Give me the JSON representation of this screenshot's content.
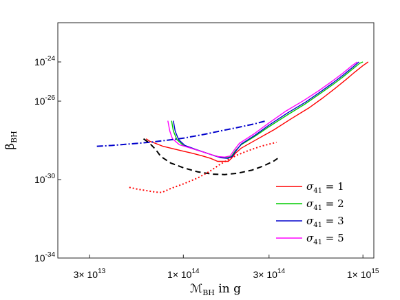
{
  "chart_data": {
    "type": "line",
    "xlabel_main": "ℳ",
    "xlabel_sub": "BH",
    "xlabel_rest": " in g",
    "ylabel_main": "β",
    "ylabel_sub": "BH",
    "xscale": "log",
    "yscale": "log",
    "xlim": [
      20000000000000.0,
      1150000000000000.0
    ],
    "ylim": [
      1e-34,
      1e-22
    ],
    "x_ticks": [
      {
        "value": 30000000000000.0,
        "mant": "3×",
        "exp": "13"
      },
      {
        "value": 100000000000000.0,
        "mant": "1×",
        "exp": "14"
      },
      {
        "value": 300000000000000.0,
        "mant": "3×",
        "exp": "14"
      },
      {
        "value": 1000000000000000.0,
        "mant": "1×",
        "exp": "15"
      }
    ],
    "y_ticks": [
      {
        "value": 1e-24,
        "exp": "-24"
      },
      {
        "value": 1e-26,
        "exp": "-26"
      },
      {
        "value": 1e-30,
        "exp": "-30"
      },
      {
        "value": 1e-34,
        "exp": "-34"
      }
    ],
    "grid": false,
    "legend_position": "bottom-right",
    "series": [
      {
        "name": "σ41 = 1",
        "legend_main": "σ",
        "legend_sub": "41",
        "legend_value": " = 1",
        "color": "#ff0000",
        "style": "solid",
        "in_legend": true,
        "points": [
          [
            62000000000000.0,
            1.2e-28
          ],
          [
            65000000000000.0,
            9e-29
          ],
          [
            70000000000000.0,
            7e-29
          ],
          [
            77000000000000.0,
            5e-29
          ],
          [
            85000000000000.0,
            4e-29
          ],
          [
            97000000000000.0,
            3e-29
          ],
          [
            112000000000000.0,
            2.2e-29
          ],
          [
            128000000000000.0,
            1.6e-29
          ],
          [
            142000000000000.0,
            1.2e-29
          ],
          [
            155000000000000.0,
            8.5e-30
          ],
          [
            168000000000000.0,
            8.5e-30
          ],
          [
            178000000000000.0,
            8.5e-30
          ],
          [
            185000000000000.0,
            1.2e-29
          ],
          [
            195000000000000.0,
            2.2e-29
          ],
          [
            210000000000000.0,
            4e-29
          ],
          [
            260000000000000.0,
            1.2e-28
          ],
          [
            320000000000000.0,
            3.5e-28
          ],
          [
            400000000000000.0,
            1.3e-27
          ],
          [
            500000000000000.0,
            4.5e-27
          ],
          [
            600000000000000.0,
            1.5e-26
          ],
          [
            700000000000000.0,
            4.5e-26
          ],
          [
            800000000000000.0,
            1.2e-25
          ],
          [
            900000000000000.0,
            3e-25
          ],
          [
            1000000000000000.0,
            6.5e-25
          ],
          [
            1070000000000000.0,
            1e-24
          ]
        ]
      },
      {
        "name": "σ41 = 2",
        "legend_main": "σ",
        "legend_sub": "41",
        "legend_value": " = 2",
        "color": "#00cc00",
        "style": "solid",
        "in_legend": true,
        "points": [
          [
            86000000000000.0,
            1e-27
          ],
          [
            88000000000000.0,
            3e-28
          ],
          [
            92000000000000.0,
            1.1e-28
          ],
          [
            100000000000000.0,
            5.5e-29
          ],
          [
            115000000000000.0,
            3.5e-29
          ],
          [
            130000000000000.0,
            2.5e-29
          ],
          [
            145000000000000.0,
            1.8e-29
          ],
          [
            160000000000000.0,
            1.4e-29
          ],
          [
            175000000000000.0,
            1.3e-29
          ],
          [
            185000000000000.0,
            1.5e-29
          ],
          [
            195000000000000.0,
            3e-29
          ],
          [
            210000000000000.0,
            6e-29
          ],
          [
            250000000000000.0,
            1.6e-28
          ],
          [
            300000000000000.0,
            5e-28
          ],
          [
            380000000000000.0,
            2e-27
          ],
          [
            480000000000000.0,
            7.5e-27
          ],
          [
            580000000000000.0,
            2.5e-26
          ],
          [
            680000000000000.0,
            7e-26
          ],
          [
            780000000000000.0,
            1.8e-25
          ],
          [
            880000000000000.0,
            4.5e-25
          ],
          [
            960000000000000.0,
            8.5e-25
          ],
          [
            1000000000000000.0,
            1e-24
          ]
        ]
      },
      {
        "name": "σ41 = 3",
        "legend_main": "σ",
        "legend_sub": "41",
        "legend_value": " = 3",
        "color": "#0000cc",
        "style": "solid",
        "in_legend": true,
        "points": [
          [
            88000000000000.0,
            1e-27
          ],
          [
            90000000000000.0,
            3e-28
          ],
          [
            94000000000000.0,
            1.1e-28
          ],
          [
            102000000000000.0,
            5.5e-29
          ],
          [
            117000000000000.0,
            3.5e-29
          ],
          [
            132000000000000.0,
            2.4e-29
          ],
          [
            147000000000000.0,
            1.7e-29
          ],
          [
            162000000000000.0,
            1.3e-29
          ],
          [
            177000000000000.0,
            1.2e-29
          ],
          [
            187000000000000.0,
            1.5e-29
          ],
          [
            197000000000000.0,
            3e-29
          ],
          [
            210000000000000.0,
            6.5e-29
          ],
          [
            250000000000000.0,
            1.8e-28
          ],
          [
            300000000000000.0,
            6e-28
          ],
          [
            380000000000000.0,
            2.5e-27
          ],
          [
            480000000000000.0,
            9e-27
          ],
          [
            580000000000000.0,
            3e-26
          ],
          [
            680000000000000.0,
            8.5e-26
          ],
          [
            780000000000000.0,
            2.2e-25
          ],
          [
            880000000000000.0,
            5.5e-25
          ],
          [
            950000000000000.0,
            1e-24
          ]
        ]
      },
      {
        "name": "σ41 = 5",
        "legend_main": "σ",
        "legend_sub": "41",
        "legend_value": " = 5",
        "color": "#ff00ff",
        "style": "solid",
        "in_legend": true,
        "points": [
          [
            82000000000000.0,
            1e-27
          ],
          [
            84000000000000.0,
            3e-28
          ],
          [
            87000000000000.0,
            1.2e-28
          ],
          [
            95000000000000.0,
            6e-29
          ],
          [
            110000000000000.0,
            4e-29
          ],
          [
            125000000000000.0,
            2.8e-29
          ],
          [
            140000000000000.0,
            2e-29
          ],
          [
            155000000000000.0,
            1.5e-29
          ],
          [
            170000000000000.0,
            1.4e-29
          ],
          [
            182000000000000.0,
            1.6e-29
          ],
          [
            192000000000000.0,
            3.2e-29
          ],
          [
            205000000000000.0,
            7e-29
          ],
          [
            245000000000000.0,
            2e-28
          ],
          [
            295000000000000.0,
            7e-28
          ],
          [
            370000000000000.0,
            3e-27
          ],
          [
            470000000000000.0,
            1.1e-26
          ],
          [
            570000000000000.0,
            3.5e-26
          ],
          [
            670000000000000.0,
            1e-25
          ],
          [
            770000000000000.0,
            2.6e-25
          ],
          [
            870000000000000.0,
            6.5e-25
          ],
          [
            930000000000000.0,
            1e-24
          ]
        ]
      },
      {
        "name": "",
        "color": "#0000cc",
        "style": "dashdot",
        "in_legend": false,
        "points": [
          [
            33000000000000.0,
            5e-29
          ],
          [
            40000000000000.0,
            5.5e-29
          ],
          [
            50000000000000.0,
            6.5e-29
          ],
          [
            65000000000000.0,
            8e-29
          ],
          [
            80000000000000.0,
            1e-28
          ],
          [
            100000000000000.0,
            1.3e-28
          ],
          [
            130000000000000.0,
            2e-28
          ],
          [
            160000000000000.0,
            3e-28
          ],
          [
            200000000000000.0,
            4.5e-28
          ],
          [
            250000000000000.0,
            7e-28
          ],
          [
            290000000000000.0,
            1e-27
          ]
        ]
      },
      {
        "name": "",
        "color": "#000000",
        "style": "dashed",
        "in_legend": false,
        "points": [
          [
            60000000000000.0,
            1.2e-28
          ],
          [
            65000000000000.0,
            7e-29
          ],
          [
            70000000000000.0,
            3.5e-29
          ],
          [
            75000000000000.0,
            1.5e-29
          ],
          [
            85000000000000.0,
            7e-30
          ],
          [
            100000000000000.0,
            4e-30
          ],
          [
            120000000000000.0,
            2.5e-30
          ],
          [
            145000000000000.0,
            1.9e-30
          ],
          [
            170000000000000.0,
            1.8e-30
          ],
          [
            200000000000000.0,
            2.1e-30
          ],
          [
            240000000000000.0,
            3e-30
          ],
          [
            280000000000000.0,
            5e-30
          ],
          [
            320000000000000.0,
            9e-30
          ],
          [
            335000000000000.0,
            1.2e-29
          ]
        ]
      },
      {
        "name": "",
        "color": "#ff0000",
        "style": "dotted",
        "in_legend": false,
        "points": [
          [
            50000000000000.0,
            4e-31
          ],
          [
            56000000000000.0,
            3.2e-31
          ],
          [
            63000000000000.0,
            2.7e-31
          ],
          [
            70000000000000.0,
            2.3e-31
          ],
          [
            76000000000000.0,
            2.2e-31
          ],
          [
            85000000000000.0,
            3.5e-31
          ],
          [
            100000000000000.0,
            6e-31
          ],
          [
            120000000000000.0,
            1.2e-30
          ],
          [
            140000000000000.0,
            2.6e-30
          ],
          [
            160000000000000.0,
            6e-30
          ],
          [
            180000000000000.0,
            1.1e-29
          ],
          [
            200000000000000.0,
            1.8e-29
          ],
          [
            230000000000000.0,
            3e-29
          ],
          [
            270000000000000.0,
            5e-29
          ],
          [
            330000000000000.0,
            8e-29
          ]
        ]
      }
    ]
  }
}
